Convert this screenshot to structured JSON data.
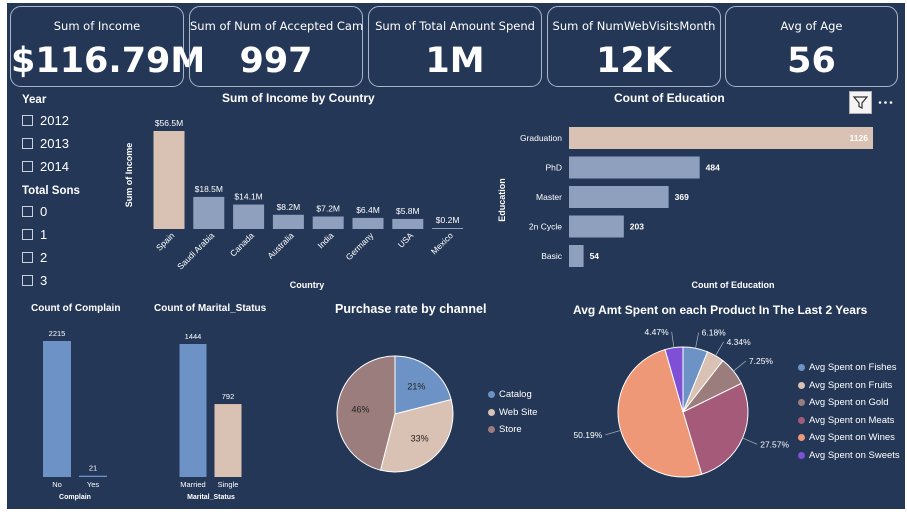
{
  "kpi_cards": [
    {
      "label": "Sum of Income",
      "value": "$116.79M"
    },
    {
      "label": "Sum of Num of Accepted Cam",
      "value": "997"
    },
    {
      "label": "Sum of Total Amount Spend",
      "value": "1M"
    },
    {
      "label": "Sum of NumWebVisitsMonth",
      "value": "12K"
    },
    {
      "label": "Avg of Age",
      "value": "56"
    }
  ],
  "slicers": {
    "year": {
      "title": "Year",
      "options": [
        "2012",
        "2013",
        "2014"
      ]
    },
    "sons": {
      "title": "Total Sons",
      "options": [
        "0",
        "1",
        "2",
        "3"
      ]
    }
  },
  "icons": {
    "filter": "filter-icon",
    "more": "more-options-icon"
  },
  "colors": {
    "background": "#243757",
    "tan": "#d9c1b3",
    "slate": "#8fa0bf",
    "blue": "#6d93c6"
  },
  "chart_data": [
    {
      "type": "bar",
      "title": "Sum of Income by Country",
      "xlabel": "Country",
      "ylabel": "Sum of Income",
      "categories": [
        "Spain",
        "Saudi Arabia",
        "Canada",
        "Australia",
        "India",
        "Germany",
        "USA",
        "Mexico"
      ],
      "values": [
        56.5,
        18.5,
        14.1,
        8.2,
        7.2,
        6.4,
        5.8,
        0.2
      ],
      "labels": [
        "$56.5M",
        "$18.5M",
        "$14.1M",
        "$8.2M",
        "$7.2M",
        "$6.4M",
        "$5.8M",
        "$0.2M"
      ]
    },
    {
      "type": "bar",
      "orientation": "horizontal",
      "title": "Count of Education",
      "xlabel": "Count of Education",
      "ylabel": "Education",
      "categories": [
        "Graduation",
        "PhD",
        "Master",
        "2n Cycle",
        "Basic"
      ],
      "values": [
        1126,
        484,
        369,
        203,
        54
      ]
    },
    {
      "type": "bar",
      "title": "Count of Complain",
      "xlabel": "Complain",
      "categories": [
        "No",
        "Yes"
      ],
      "values": [
        2215,
        21
      ]
    },
    {
      "type": "bar",
      "title": "Count of Marital_Status",
      "xlabel": "Marital_Status",
      "categories": [
        "Married",
        "Single"
      ],
      "values": [
        1444,
        792
      ]
    },
    {
      "type": "pie",
      "title": "Purchase rate by channel",
      "categories": [
        "Catalog",
        "Web Site",
        "Store"
      ],
      "values": [
        21,
        33,
        46
      ],
      "labels": [
        "21%",
        "33%",
        "46%"
      ],
      "colors": [
        "#6d93c6",
        "#d9c1b3",
        "#9c7d7e"
      ]
    },
    {
      "type": "pie",
      "title": "Avg Amt Spent on each Product In The Last 2 Years",
      "categories": [
        "Avg Spent on Fishes",
        "Avg Spent on Fruits",
        "Avg Spent on Gold",
        "Avg Spent on Meats",
        "Avg Spent on Wines",
        "Avg Spent on Sweets"
      ],
      "values": [
        6.18,
        4.34,
        7.25,
        27.57,
        50.19,
        4.47
      ],
      "labels": [
        "6.18%",
        "4.34%",
        "7.25%",
        "27.57%",
        "50.19%",
        "4.47%"
      ],
      "colors": [
        "#6d93c6",
        "#d9c1b3",
        "#9c7d7e",
        "#a45a78",
        "#ef9877",
        "#7f4fd6"
      ]
    }
  ]
}
